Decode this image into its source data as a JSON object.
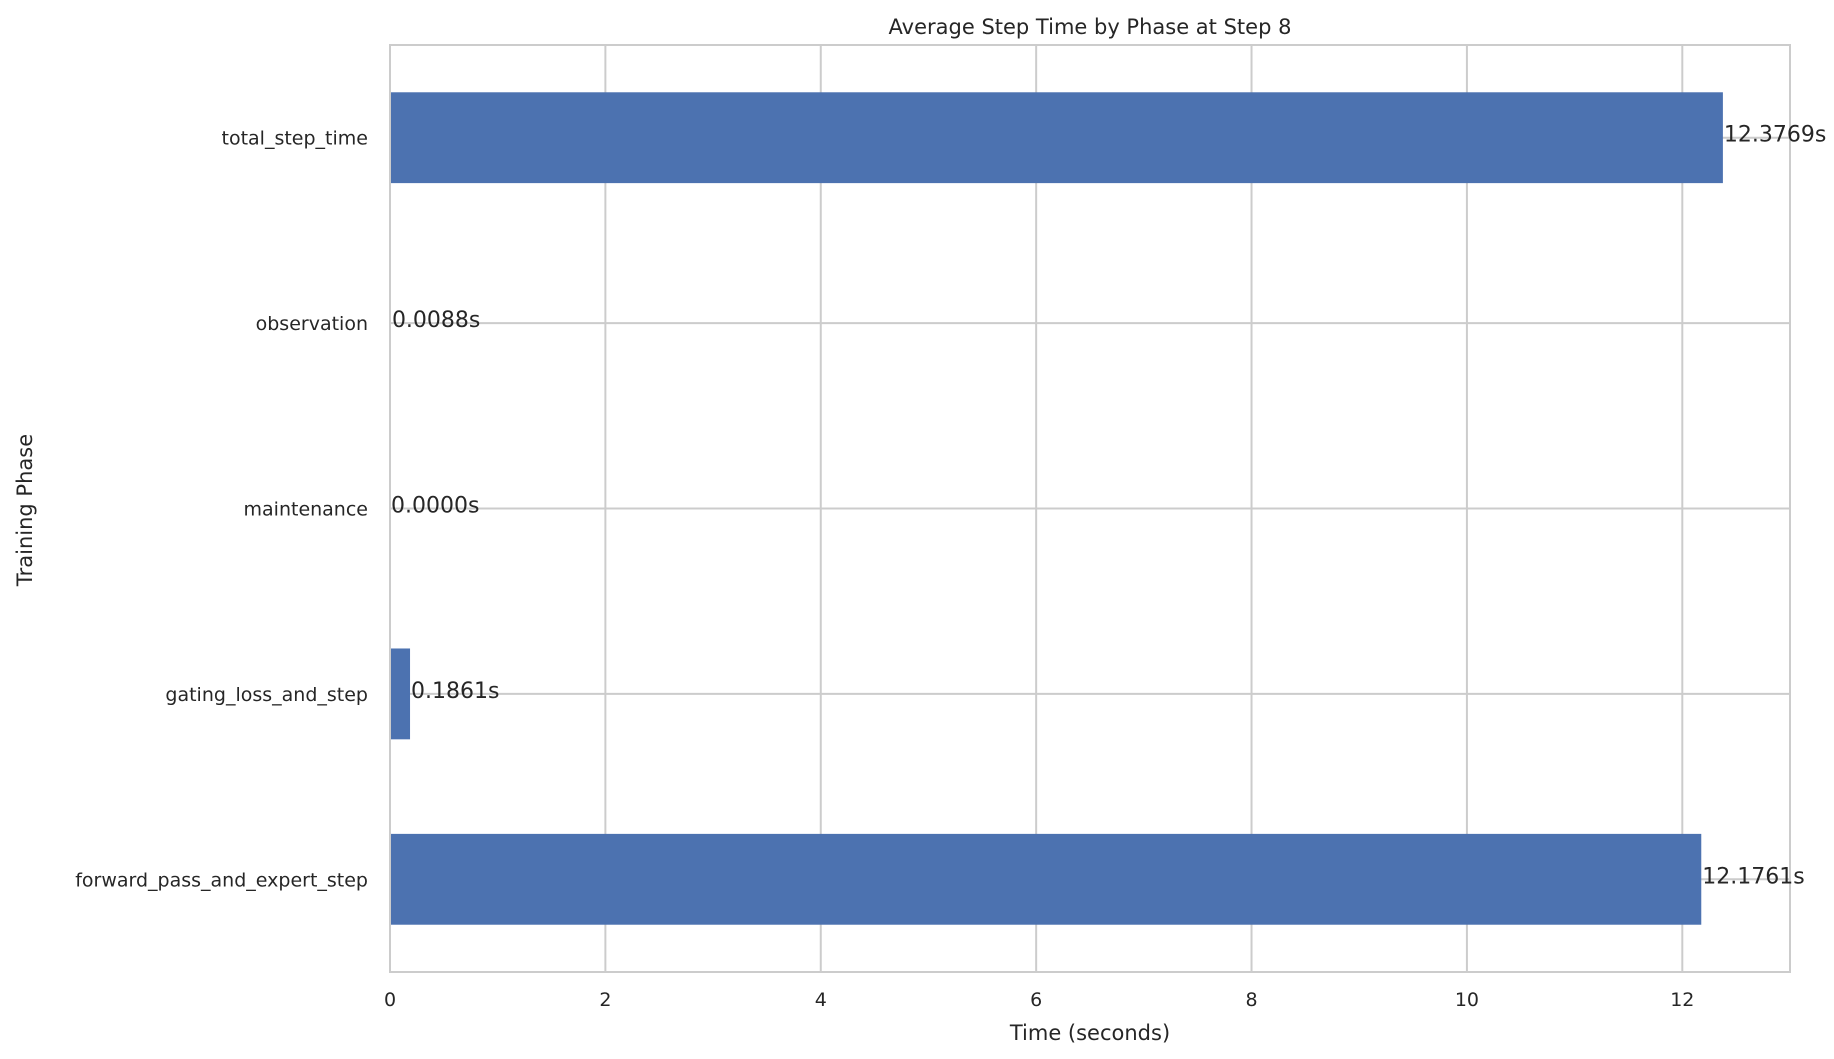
{
  "chart_data": {
    "type": "bar",
    "orientation": "horizontal",
    "title": "Average Step Time by Phase at Step 8",
    "xlabel": "Time (seconds)",
    "ylabel": "Training Phase",
    "categories": [
      "forward_pass_and_expert_step",
      "gating_loss_and_step",
      "maintenance",
      "observation",
      "total_step_time"
    ],
    "values": [
      12.1761,
      0.1861,
      0.0,
      0.0088,
      12.3769
    ],
    "data_labels": [
      "12.1761s",
      "0.1861s",
      "0.0000s",
      "0.0088s",
      "12.3769s"
    ],
    "xlim": [
      0,
      13
    ],
    "xticks": [
      0,
      2,
      4,
      6,
      8,
      10,
      12
    ],
    "grid": true,
    "bar_color": "#4c72b0",
    "grid_color": "#cccccc",
    "spine_color": "#cccccc"
  }
}
